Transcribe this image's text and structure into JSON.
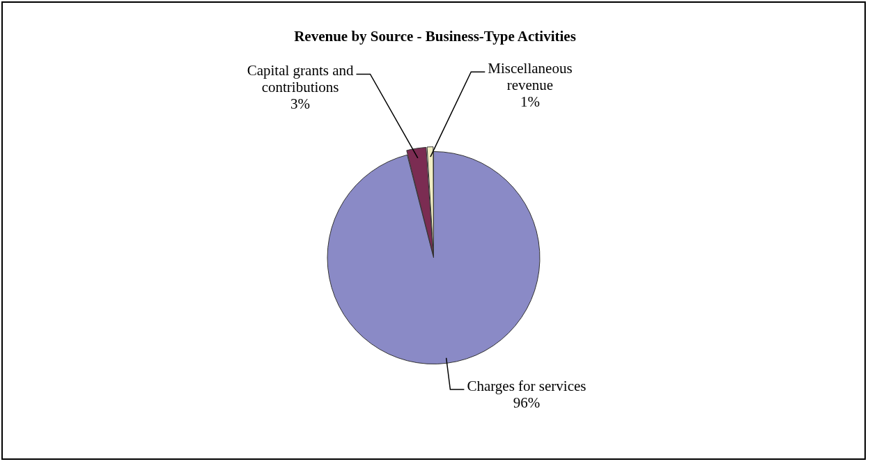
{
  "chart_data": {
    "type": "pie",
    "title": "Revenue by Source - Business-Type Activities",
    "categories": [
      "Charges for services",
      "Capital grants and contributions",
      "Miscellaneous revenue"
    ],
    "values": [
      96,
      3,
      1
    ],
    "colors": [
      "#8a8ac6",
      "#7b2c52",
      "#f2efc4"
    ],
    "value_labels": [
      "96%",
      "3%",
      "1%"
    ],
    "legend": false
  }
}
